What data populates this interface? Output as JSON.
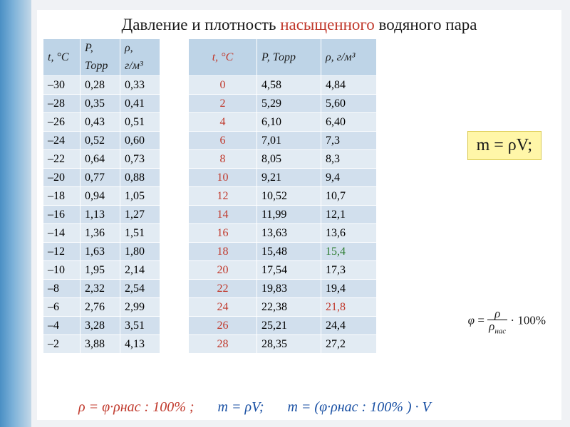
{
  "title_pre": "Давление и плотность ",
  "title_accent": "насыщенного",
  "title_post": " водяного пара",
  "headers": {
    "t1": "t, °С",
    "p1_l1": "P,",
    "p1_l2": "Торр",
    "r1_l1": "ρ,",
    "r1_l2": "г/м³",
    "t2": "t, °С",
    "p2": "P, Торр",
    "r2": "ρ, г/м³"
  },
  "rows": [
    {
      "t1": "–30",
      "p1": "0,28",
      "r1": "0,33",
      "t2": "0",
      "p2": "4,58",
      "r2": "4,84",
      "r2c": ""
    },
    {
      "t1": "–28",
      "p1": "0,35",
      "r1": "0,41",
      "t2": "2",
      "p2": "5,29",
      "r2": "5,60",
      "r2c": ""
    },
    {
      "t1": "–26",
      "p1": "0,43",
      "r1": "0,51",
      "t2": "4",
      "p2": "6,10",
      "r2": "6,40",
      "r2c": ""
    },
    {
      "t1": "–24",
      "p1": "0,52",
      "r1": "0,60",
      "t2": "6",
      "p2": "7,01",
      "r2": "7,3",
      "r2c": ""
    },
    {
      "t1": "–22",
      "p1": "0,64",
      "r1": "0,73",
      "t2": "8",
      "p2": "8,05",
      "r2": "8,3",
      "r2c": ""
    },
    {
      "t1": "–20",
      "p1": "0,77",
      "r1": "0,88",
      "t2": "10",
      "p2": "9,21",
      "r2": "9,4",
      "r2c": ""
    },
    {
      "t1": "–18",
      "p1": "0,94",
      "r1": "1,05",
      "t2": "12",
      "p2": "10,52",
      "r2": "10,7",
      "r2c": ""
    },
    {
      "t1": "–16",
      "p1": "1,13",
      "r1": "1,27",
      "t2": "14",
      "p2": "11,99",
      "r2": "12,1",
      "r2c": ""
    },
    {
      "t1": "–14",
      "p1": "1,36",
      "r1": "1,51",
      "t2": "16",
      "p2": "13,63",
      "r2": "13,6",
      "r2c": ""
    },
    {
      "t1": "–12",
      "p1": "1,63",
      "r1": "1,80",
      "t2": "18",
      "p2": "15,48",
      "r2": "15,4",
      "r2c": "green bold"
    },
    {
      "t1": "–10",
      "p1": "1,95",
      "r1": "2,14",
      "t2": "20",
      "p2": "17,54",
      "r2": "17,3",
      "r2c": "bold"
    },
    {
      "t1": "–8",
      "p1": "2,32",
      "r1": "2,54",
      "t2": "22",
      "p2": "19,83",
      "r2": "19,4",
      "r2c": ""
    },
    {
      "t1": "–6",
      "p1": "2,76",
      "r1": "2,99",
      "t2": "24",
      "p2": "22,38",
      "r2": "21,8",
      "r2c": "red bold"
    },
    {
      "t1": "–4",
      "p1": "3,28",
      "r1": "3,51",
      "t2": "26",
      "p2": "25,21",
      "r2": "24,4",
      "r2c": ""
    },
    {
      "t1": "–2",
      "p1": "3,88",
      "r1": "4,13",
      "t2": "28",
      "p2": "28,35",
      "r2": "27,2",
      "r2c": ""
    }
  ],
  "formula_m": "m = ρV;",
  "formula_phi": "φ = ρ / ρнас · 100%",
  "bottom": {
    "f1": "ρ = φ·ρнас : 100% ;",
    "f2": "m = ρV;",
    "f3": "m = (φ·ρнас : 100% ) · V"
  },
  "style": {
    "table_header_bg": "#bed4e7",
    "row_bg": "#e2ebf3",
    "row_alt_bg": "#d1dfed",
    "accent_color": "#c0382b",
    "blue_text": "#184fa3",
    "green_text": "#2e7d32",
    "highlight_bg": "#fff6a8"
  }
}
